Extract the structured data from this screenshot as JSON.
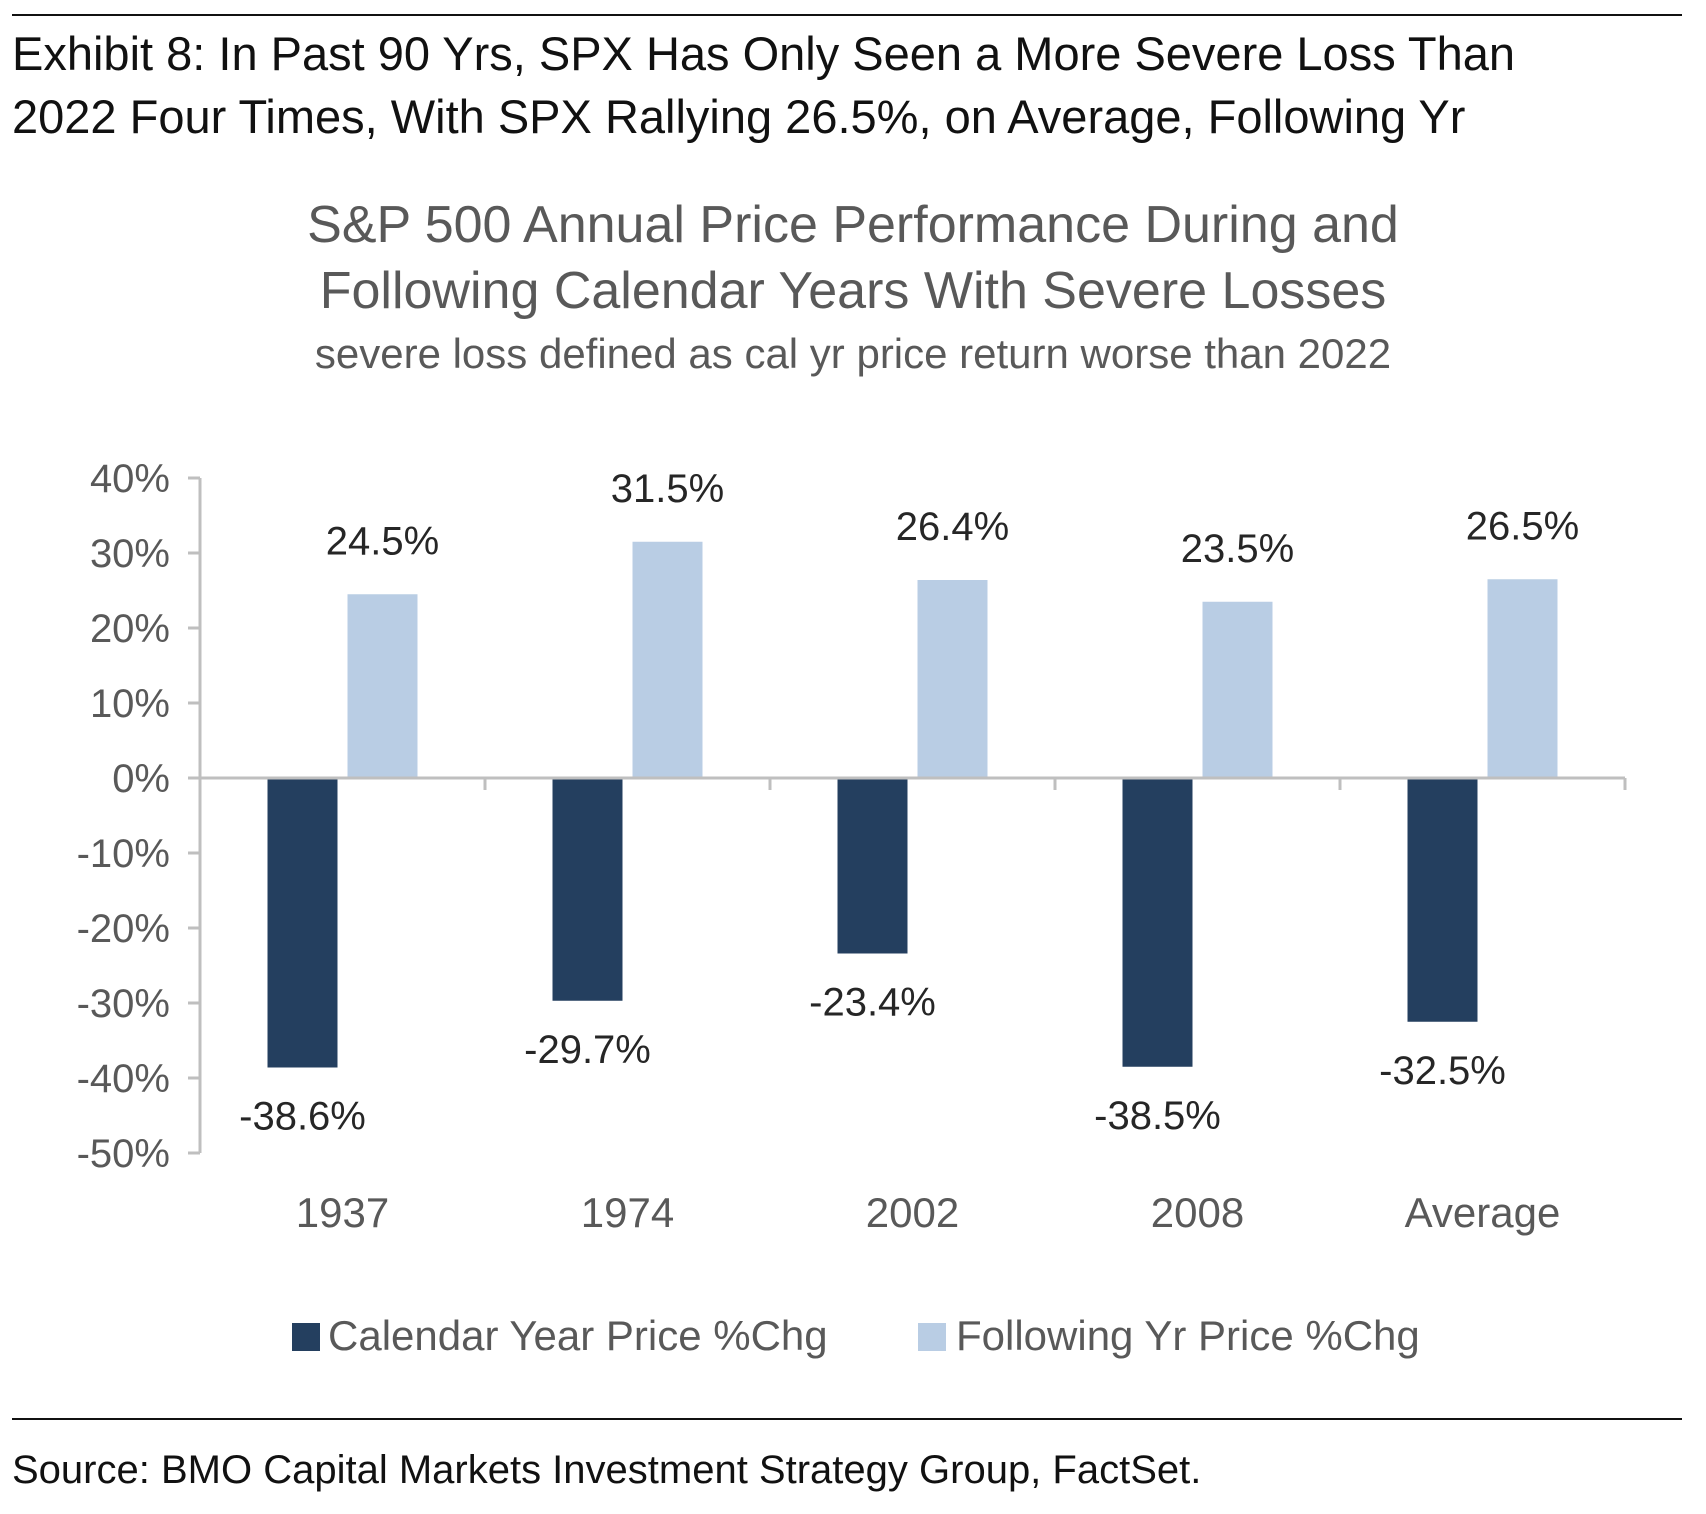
{
  "exhibit": {
    "title_line1": "Exhibit 8: In Past 90 Yrs, SPX Has Only Seen a More Severe Loss Than",
    "title_line2": "2022 Four Times, With SPX Rallying 26.5%, on Average, Following Yr"
  },
  "source": "Source: BMO Capital Markets Investment Strategy Group, FactSet.",
  "chart_data": {
    "type": "bar",
    "title_line1": "S&P 500 Annual Price Performance During and",
    "title_line2": "Following Calendar Years With Severe Losses",
    "subtitle": "severe loss defined as cal yr price return worse than 2022",
    "categories": [
      "1937",
      "1974",
      "2002",
      "2008",
      "Average"
    ],
    "series": [
      {
        "name": "Calendar Year Price %Chg",
        "color": "#243f5f",
        "values": [
          -38.6,
          -29.7,
          -23.4,
          -38.5,
          -32.5
        ],
        "labels": [
          "-38.6%",
          "-29.7%",
          "-23.4%",
          "-38.5%",
          "-32.5%"
        ]
      },
      {
        "name": "Following Yr Price %Chg",
        "color": "#b9cde4",
        "values": [
          24.5,
          31.5,
          26.4,
          23.5,
          26.5
        ],
        "labels": [
          "24.5%",
          "31.5%",
          "26.4%",
          "23.5%",
          "26.5%"
        ]
      }
    ],
    "ylim": [
      -50,
      40
    ],
    "yticks": [
      40,
      30,
      20,
      10,
      0,
      -10,
      -20,
      -30,
      -40,
      -50
    ],
    "ytick_labels": [
      "40%",
      "30%",
      "20%",
      "10%",
      "0%",
      "-10%",
      "-20%",
      "-30%",
      "-40%",
      "-50%"
    ],
    "grid": false,
    "legend_position": "bottom"
  }
}
